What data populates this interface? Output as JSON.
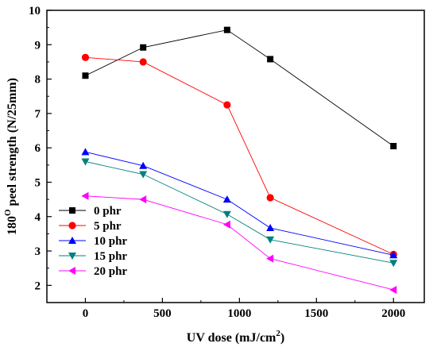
{
  "chart_data": {
    "type": "line",
    "title": "",
    "xlabel": "UV dose (mJ/cm",
    "xlabel_sup": "2",
    "xlabel_suffix": ")",
    "ylabel_prefix": "180",
    "ylabel_sup": "O",
    "ylabel_suffix": " peel strength (N/25mm)",
    "xlim": [
      -250,
      2200
    ],
    "ylim": [
      1.5,
      10
    ],
    "xticks": [
      0,
      500,
      1000,
      1500,
      2000
    ],
    "yticks": [
      2,
      3,
      4,
      5,
      6,
      7,
      8,
      9,
      10
    ],
    "grid": false,
    "legend_position": "bottom-left",
    "x": [
      0,
      375,
      920,
      1200,
      2000
    ],
    "series": [
      {
        "name": "0  phr",
        "color": "#000000",
        "marker": "square",
        "values": [
          8.1,
          8.92,
          9.43,
          8.58,
          6.05
        ]
      },
      {
        "name": "5  phr",
        "color": "#ff0000",
        "marker": "circle",
        "values": [
          8.63,
          8.5,
          7.25,
          4.55,
          2.9
        ]
      },
      {
        "name": "10 phr",
        "color": "#0000ff",
        "marker": "triangle-up",
        "values": [
          5.88,
          5.48,
          4.5,
          3.67,
          2.88
        ]
      },
      {
        "name": "15 phr",
        "color": "#008080",
        "marker": "triangle-down",
        "values": [
          5.6,
          5.23,
          4.07,
          3.33,
          2.65
        ]
      },
      {
        "name": "20 phr",
        "color": "#ff00ff",
        "marker": "triangle-left",
        "values": [
          4.6,
          4.5,
          3.77,
          2.78,
          1.87
        ]
      }
    ]
  }
}
